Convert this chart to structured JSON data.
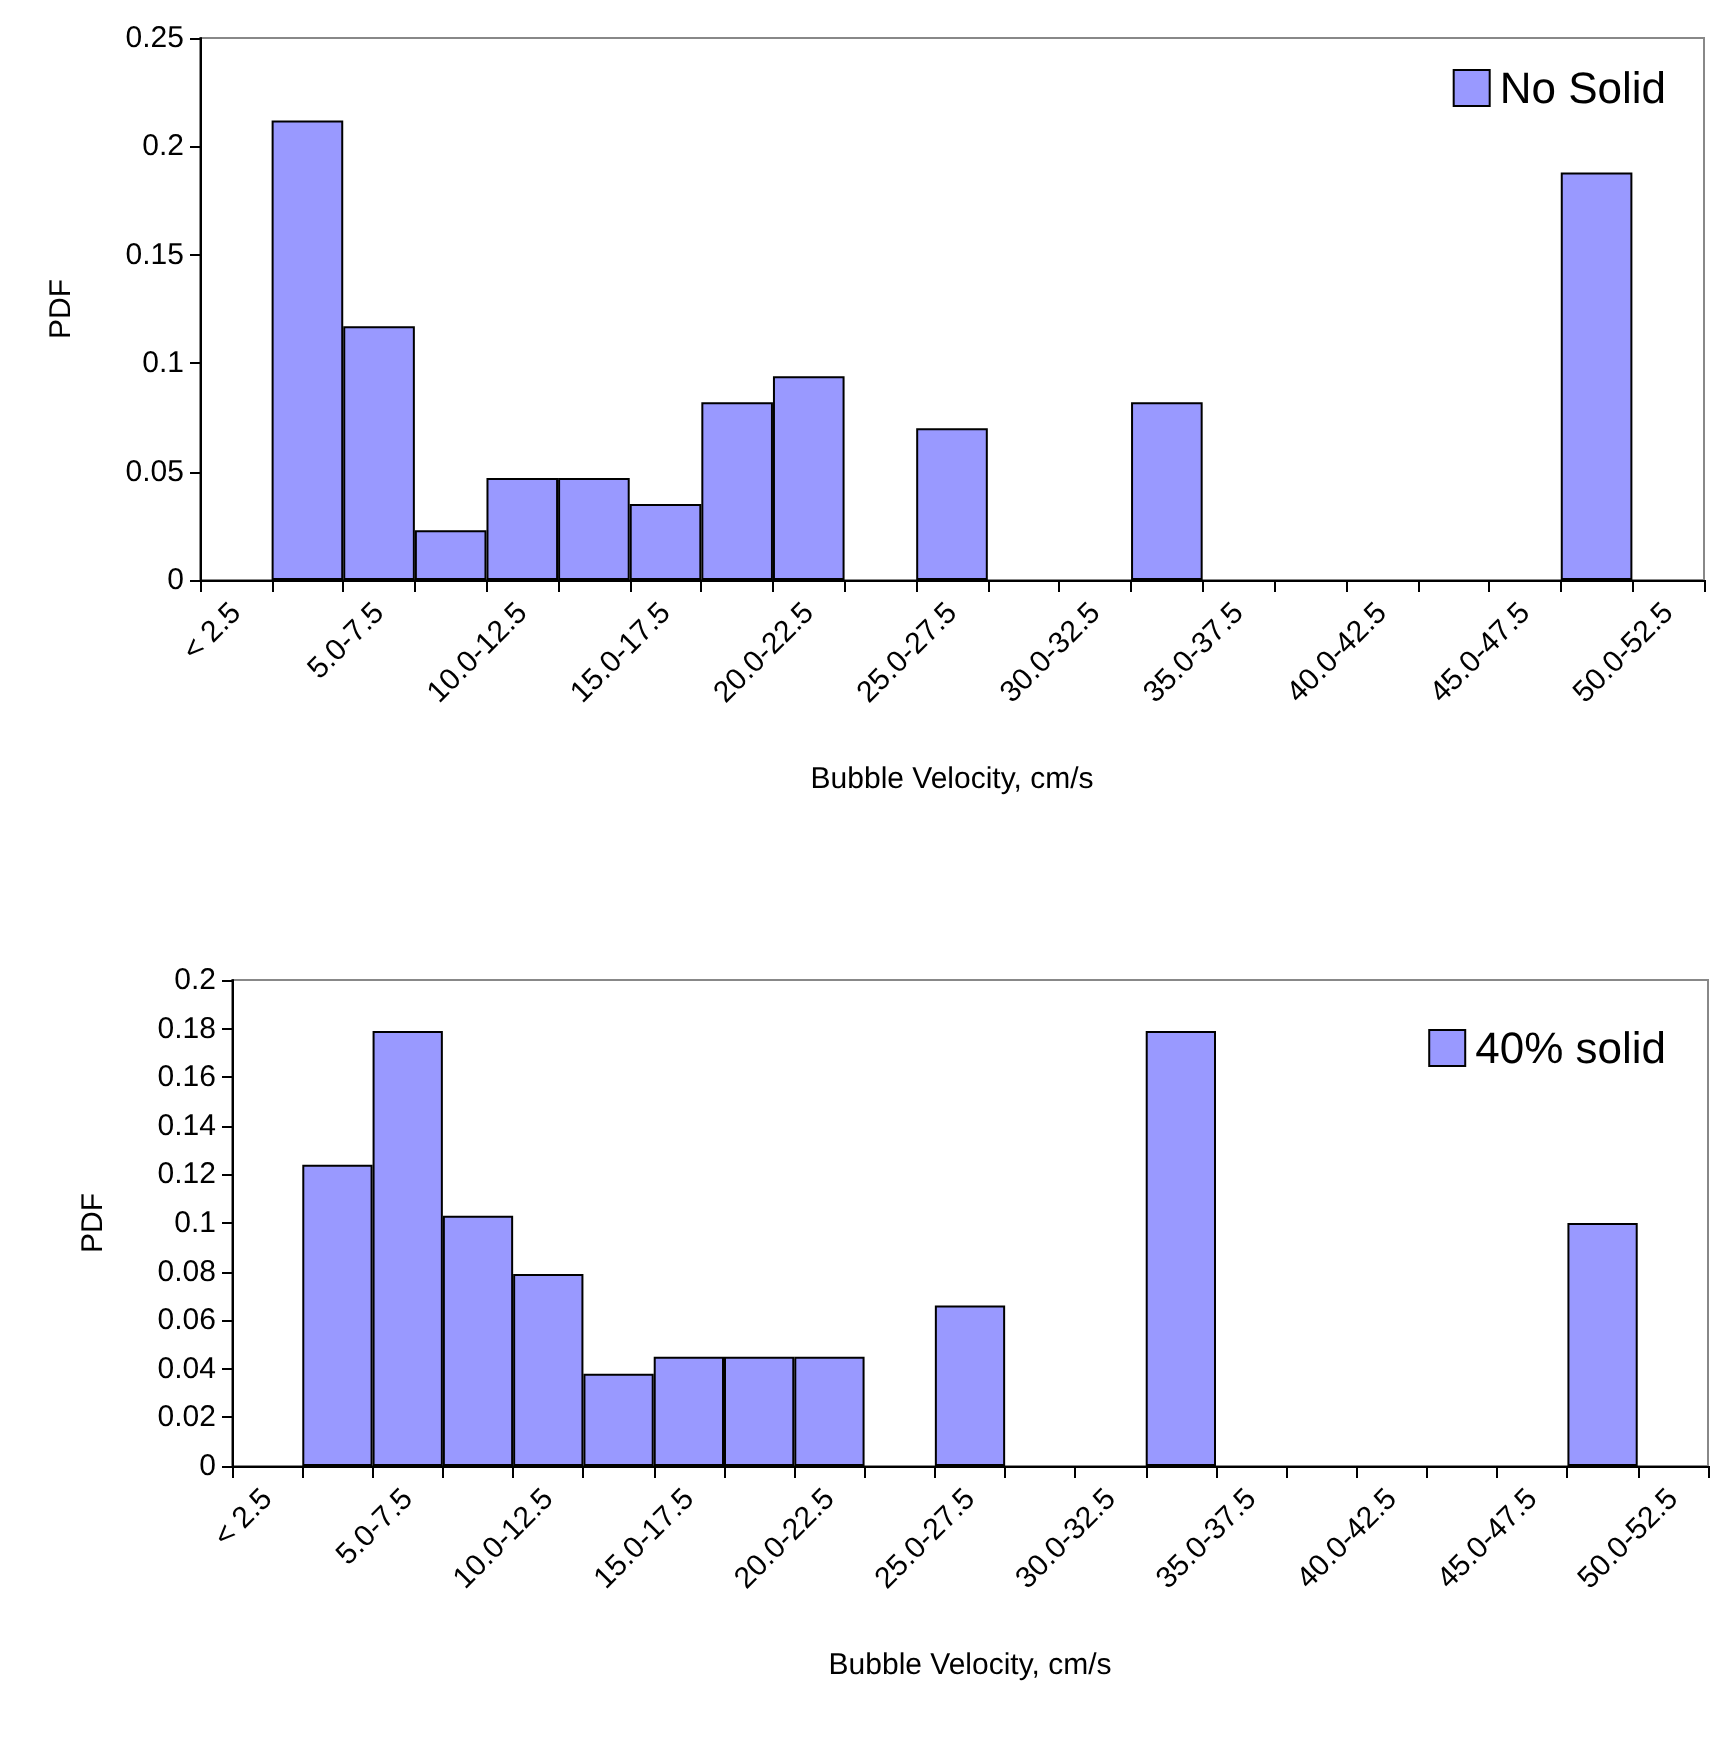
{
  "chart_data": [
    {
      "type": "bar",
      "xlabel": "Bubble Velocity, cm/s",
      "ylabel": "PDF",
      "categories": [
        "< 2.5",
        null,
        "5.0-7.5",
        null,
        "10.0-12.5",
        null,
        "15.0-17.5",
        null,
        "20.0-22.5",
        null,
        "25.0-27.5",
        null,
        "30.0-32.5",
        null,
        "35.0-37.5",
        null,
        "40.0-42.5",
        null,
        "45.0-47.5",
        null,
        "50.0-52.5"
      ],
      "series": [
        {
          "name": "No Solid",
          "color": "#9999ff",
          "values": [
            0,
            0.212,
            0.117,
            0.023,
            0.047,
            0.047,
            0.035,
            0.082,
            0.094,
            0,
            0.07,
            0,
            0,
            0.082,
            0,
            0,
            0,
            0,
            0,
            0.188,
            0
          ]
        }
      ],
      "ylim": [
        0,
        0.25
      ],
      "yticks": [
        0,
        0.05,
        0.1,
        0.15,
        0.2,
        0.25
      ],
      "grid": false,
      "legend": "top right"
    },
    {
      "type": "bar",
      "xlabel": "Bubble Velocity, cm/s",
      "ylabel": "PDF",
      "categories": [
        "< 2.5",
        null,
        "5.0-7.5",
        null,
        "10.0-12.5",
        null,
        "15.0-17.5",
        null,
        "20.0-22.5",
        null,
        "25.0-27.5",
        null,
        "30.0-32.5",
        null,
        "35.0-37.5",
        null,
        "40.0-42.5",
        null,
        "45.0-47.5",
        null,
        "50.0-52.5"
      ],
      "series": [
        {
          "name": "40% solid",
          "color": "#9999ff",
          "values": [
            0,
            0.124,
            0.179,
            0.103,
            0.079,
            0.038,
            0.045,
            0.045,
            0.045,
            0,
            0.066,
            0,
            0,
            0.179,
            0,
            0,
            0,
            0,
            0,
            0.1,
            0
          ]
        }
      ],
      "ylim": [
        0,
        0.2
      ],
      "yticks": [
        0,
        0.02,
        0.04,
        0.06,
        0.08,
        0.1,
        0.12,
        0.14,
        0.16,
        0.18,
        0.2
      ],
      "grid": false,
      "legend": "top right"
    }
  ]
}
